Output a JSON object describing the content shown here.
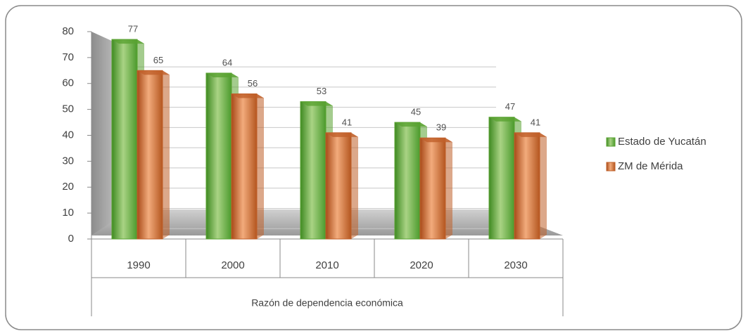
{
  "chart_data": {
    "type": "bar",
    "categories": [
      "1990",
      "2000",
      "2010",
      "2020",
      "2030"
    ],
    "xlabel": "Razón de dependencia económica",
    "series": [
      {
        "name": "Estado de Yucatán",
        "color": "#5aa332",
        "values": [
          77,
          64,
          53,
          45,
          47
        ]
      },
      {
        "name": "ZM de Mérida",
        "color": "#c0602a",
        "values": [
          65,
          56,
          41,
          39,
          41
        ]
      }
    ],
    "ylim": [
      0,
      80
    ],
    "yticks": [
      0,
      10,
      20,
      30,
      40,
      50,
      60,
      70,
      80
    ],
    "grid": true,
    "legend": "right"
  }
}
